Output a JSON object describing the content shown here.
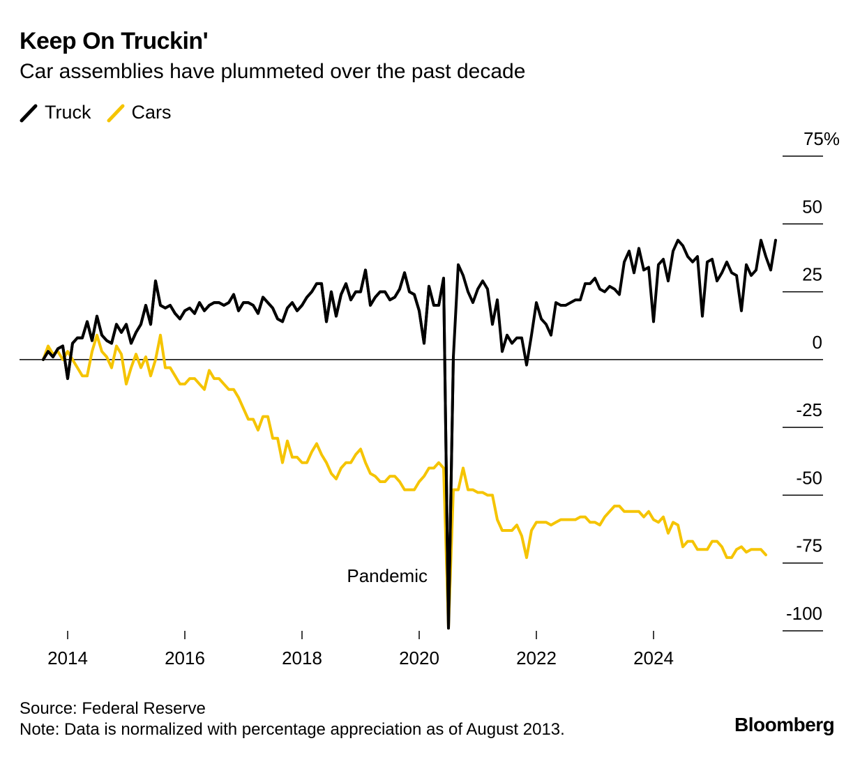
{
  "header": {
    "title": "Keep On Truckin'",
    "subtitle": "Car assemblies have plummeted over the past decade"
  },
  "footer": {
    "source": "Source: Federal Reserve",
    "note": "Note: Data is normalized with percentage appreciation as of August 2013.",
    "brand": "Bloomberg"
  },
  "colors": {
    "truck": "#000000",
    "cars": "#f5c400",
    "axis": "#000000"
  },
  "chart_data": {
    "type": "line",
    "title": "Keep On Truckin'",
    "subtitle": "Car assemblies have plummeted over the past decade",
    "x_axis": {
      "type": "time",
      "start": "2013-08",
      "frequency": "monthly",
      "ticks": [
        "2014",
        "2016",
        "2018",
        "2020",
        "2022",
        "2024"
      ],
      "tick_years": [
        2014,
        2016,
        2018,
        2020,
        2022,
        2024
      ]
    },
    "y_axis": {
      "min": -100,
      "max": 75,
      "ticks": [
        75,
        50,
        25,
        0,
        -25,
        -50,
        -75,
        -100
      ],
      "tick_labels": [
        "75%",
        "50",
        "25",
        "0",
        "-25",
        "-50",
        "-75",
        "-100"
      ],
      "position": "right"
    },
    "legend": {
      "position": "top-left"
    },
    "annotations": [
      {
        "text": "Pandemic",
        "x": "2020-05",
        "y": -90
      }
    ],
    "series": [
      {
        "name": "Truck",
        "color": "#000000",
        "values": [
          0,
          3,
          1,
          4,
          5,
          -7,
          6,
          8,
          8,
          14,
          7,
          16,
          9,
          7,
          6,
          13,
          10,
          13,
          6,
          10,
          13,
          20,
          13,
          29,
          20,
          19,
          20,
          17,
          15,
          18,
          19,
          17,
          21,
          18,
          20,
          21,
          21,
          20,
          21,
          24,
          18,
          21,
          21,
          20,
          17,
          23,
          21,
          19,
          15,
          14,
          19,
          21,
          18,
          20,
          23,
          25,
          28,
          28,
          14,
          25,
          16,
          24,
          28,
          22,
          25,
          25,
          33,
          20,
          23,
          25,
          25,
          22,
          23,
          26,
          32,
          25,
          24,
          18,
          6,
          27,
          20,
          20,
          30,
          -99,
          1,
          35,
          31,
          25,
          21,
          26,
          29,
          26,
          13,
          22,
          3,
          9,
          6,
          8,
          8,
          -2,
          9,
          21,
          15,
          13,
          9,
          21,
          20,
          20,
          21,
          22,
          22,
          28,
          28,
          30,
          26,
          25,
          27,
          26,
          24,
          36,
          40,
          32,
          41,
          33,
          34,
          14,
          35,
          37,
          29,
          40,
          44,
          42,
          38,
          36,
          38,
          16,
          36,
          37,
          29,
          32,
          36,
          32,
          31,
          18,
          35,
          31,
          33,
          44,
          38,
          33,
          44
        ],
        "values_to_2020_05": [
          0,
          3,
          1,
          4,
          5,
          -7,
          6,
          8,
          8,
          14,
          7,
          16,
          9,
          7,
          6,
          13,
          10,
          13,
          6,
          10,
          13,
          20,
          13,
          29,
          20,
          19,
          20,
          17,
          15,
          18,
          19,
          17,
          21,
          18,
          20,
          21,
          21,
          20,
          21,
          24,
          18,
          21,
          21,
          20,
          17,
          23,
          21,
          19,
          15,
          14,
          19,
          21,
          18,
          20,
          23,
          25,
          28,
          28,
          14,
          25,
          16,
          24,
          28,
          22,
          25,
          25,
          33,
          20,
          23,
          25,
          25,
          22,
          23,
          26,
          32,
          25,
          24,
          18,
          6,
          27,
          20,
          20,
          30,
          -99,
          1
        ]
      },
      {
        "name": "Cars",
        "color": "#f5c400",
        "values": [
          0,
          5,
          2,
          3,
          0,
          3,
          0,
          -3,
          -6,
          -6,
          3,
          9,
          3,
          1,
          -3,
          5,
          2,
          -9,
          -3,
          2,
          -3,
          1,
          -6,
          0,
          9,
          -3,
          -3,
          -6,
          -9,
          -9,
          -7,
          -7,
          -9,
          -11,
          -4,
          -7,
          -7,
          -9,
          -11,
          -11,
          -14,
          -18,
          -22,
          -22,
          -26,
          -21,
          -21,
          -29,
          -29,
          -38,
          -30,
          -36,
          -36,
          -38,
          -38,
          -34,
          -31,
          -35,
          -38,
          -42,
          -44,
          -40,
          -38,
          -38,
          -35,
          -33,
          -38,
          -42,
          -43,
          -45,
          -45,
          -43,
          -43,
          -45,
          -48,
          -48,
          -48,
          -45,
          -43,
          -40,
          -40,
          -38,
          -40,
          -99,
          -48,
          -48,
          -40,
          -48,
          -48,
          -49,
          -49,
          -50,
          -50,
          -59,
          -63,
          -63,
          -63,
          -61,
          -65,
          -73,
          -63,
          -60,
          -60,
          -60,
          -61,
          -60,
          -59,
          -59,
          -59,
          -59,
          -58,
          -58,
          -60,
          -60,
          -61,
          -58,
          -56,
          -54,
          -54,
          -56,
          -56,
          -56,
          -56,
          -58,
          -56,
          -59,
          -60,
          -58,
          -64,
          -60,
          -61,
          -69,
          -67,
          -67,
          -70,
          -70,
          -70,
          -67,
          -67,
          -69,
          -73,
          -73,
          -70,
          -69,
          -71,
          -70,
          -70,
          -70,
          -72
        ]
      }
    ]
  }
}
